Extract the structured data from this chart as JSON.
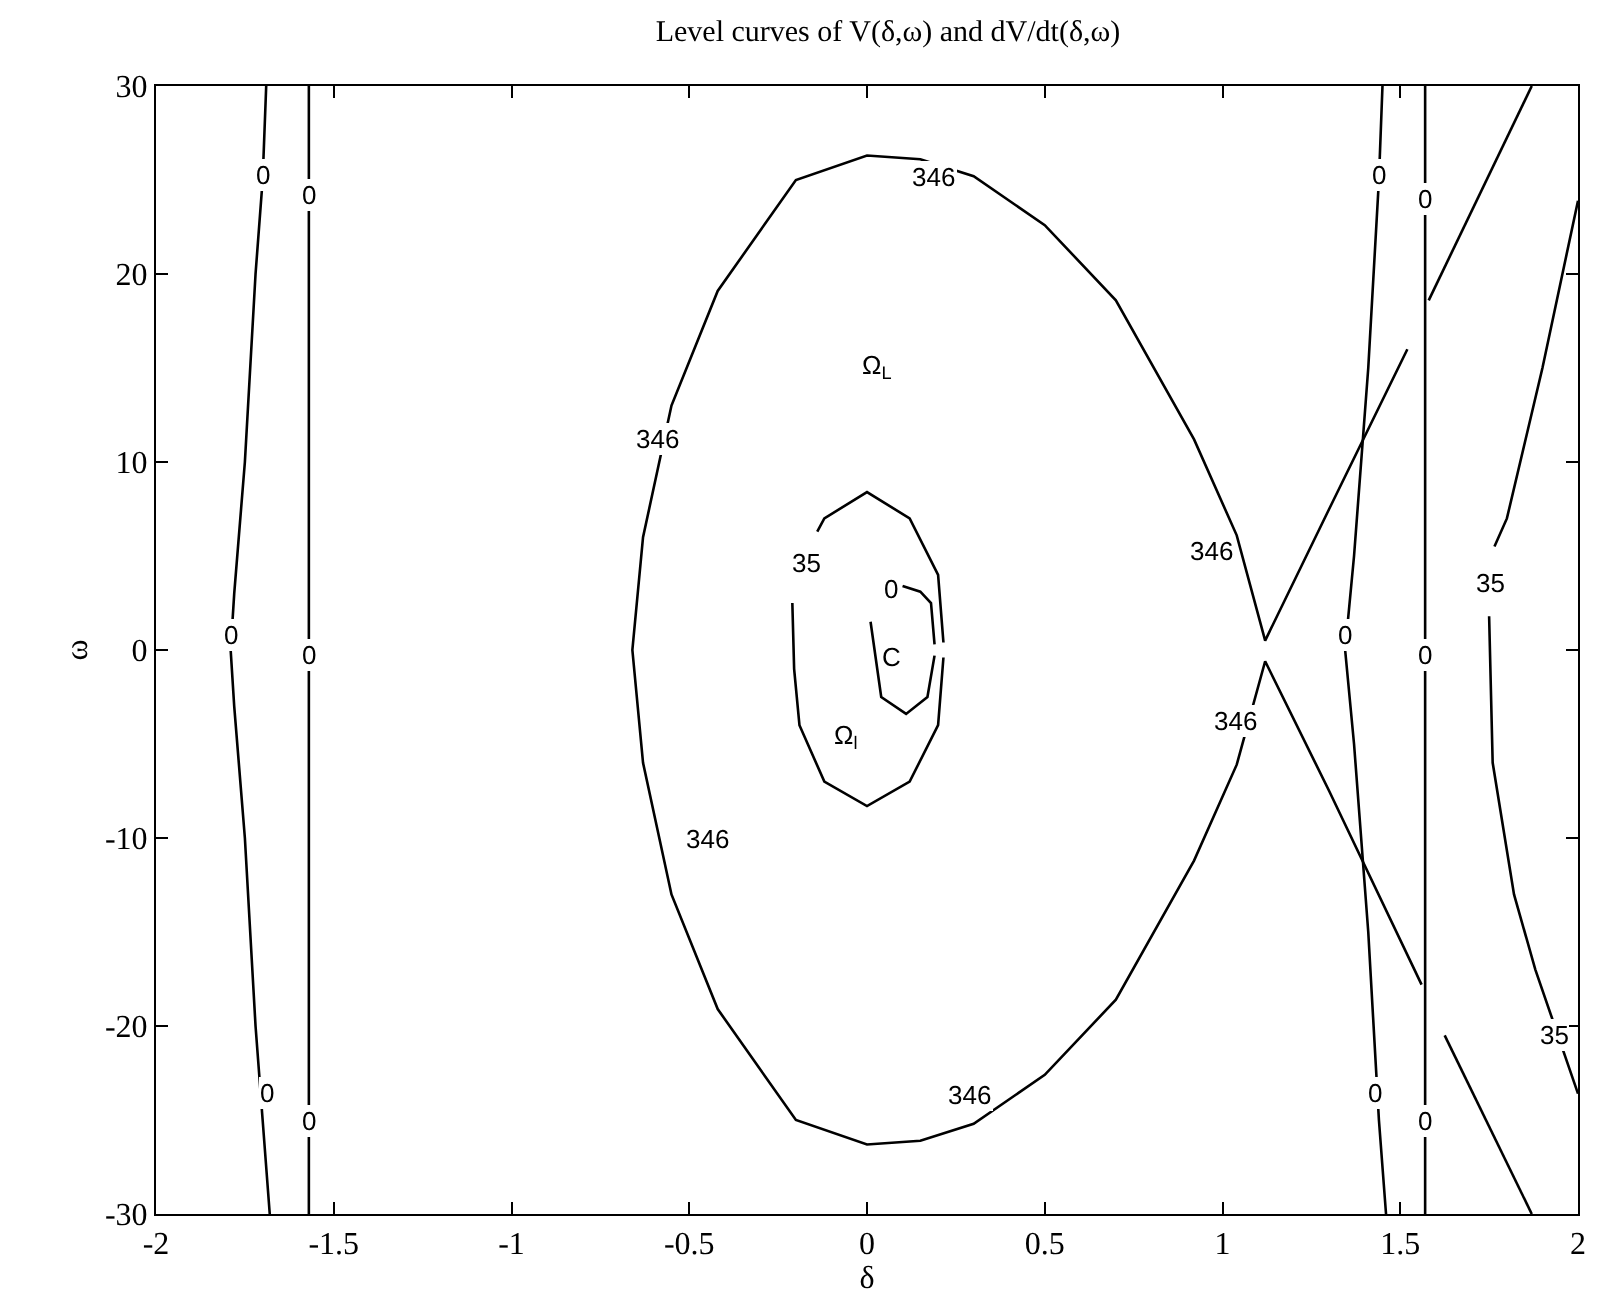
{
  "chart_data": {
    "type": "line",
    "title": "Level curves of V(δ,ω) and dV/dt(δ,ω)",
    "xlabel": "δ",
    "ylabel": "ω",
    "xlim": [
      -2,
      2
    ],
    "xticks": [
      -2,
      -1.5,
      -1,
      -0.5,
      0,
      0.5,
      1,
      1.5,
      2
    ],
    "ylim": [
      -30,
      30
    ],
    "yticks": [
      -30,
      -20,
      -10,
      0,
      10,
      20,
      30
    ],
    "marker": "none",
    "line_style": "solid",
    "series": [
      {
        "color": "#000000",
        "x": [
          -1.69,
          -1.7,
          -1.72,
          -1.75,
          -1.78,
          -1.79,
          -1.78,
          -1.75,
          -1.72,
          -1.7,
          -1.68
        ],
        "values": [
          30,
          25,
          20,
          10,
          3,
          0,
          -3,
          -10,
          -20,
          -25,
          -30
        ]
      },
      {
        "color": "#000000",
        "x": [
          -1.57,
          -1.57
        ],
        "values": [
          30,
          -30
        ]
      },
      {
        "color": "#000000",
        "x": [
          1.57,
          1.57
        ],
        "values": [
          30,
          -30
        ]
      },
      {
        "color": "#000000",
        "x": [
          1.45,
          1.44,
          1.41,
          1.37,
          1.345,
          1.37,
          1.41,
          1.44,
          1.46
        ],
        "values": [
          30,
          25,
          15,
          5,
          0,
          -5,
          -15,
          -25,
          -30
        ]
      },
      {
        "color": "#000000",
        "x": [
          1.87,
          1.58
        ],
        "values": [
          30,
          18.6
        ]
      },
      {
        "color": "#000000",
        "x": [
          1.625,
          1.87
        ],
        "values": [
          -20.5,
          -30
        ]
      },
      {
        "color": "#000000",
        "x": [
          1.52,
          1.3,
          1.12,
          1.04,
          0.92,
          0.7,
          0.5,
          0.3,
          0.15,
          0,
          -0.2,
          -0.42,
          -0.55,
          -0.63,
          -0.66,
          -0.63,
          -0.55,
          -0.42,
          -0.2,
          0,
          0.15,
          0.3,
          0.5,
          0.7,
          0.92,
          1.04,
          1.12,
          1.3,
          1.56
        ],
        "values": [
          16,
          7.5,
          0.5,
          6.1,
          11.2,
          18.6,
          22.6,
          25.2,
          26.1,
          26.3,
          25,
          19.1,
          13,
          6,
          0,
          -6,
          -13,
          -19.1,
          -25,
          -26.3,
          -26.1,
          -25.2,
          -22.6,
          -18.6,
          -11.2,
          -6.1,
          -0.6,
          -7.5,
          -17.8
        ]
      },
      {
        "color": "#000000",
        "x": [
          -0.14,
          -0.12,
          0,
          0.12,
          0.2,
          0.215
        ],
        "values": [
          6.3,
          7,
          8.4,
          7,
          4,
          0.4
        ]
      },
      {
        "color": "#000000",
        "x": [
          -0.21,
          -0.205,
          -0.19,
          -0.12,
          0,
          0.12,
          0.2,
          0.215
        ],
        "values": [
          2.5,
          -1,
          -4,
          -7,
          -8.3,
          -7,
          -4,
          -0.4
        ]
      },
      {
        "color": "#000000",
        "x": [
          0.1,
          0.15,
          0.18,
          0.19
        ],
        "values": [
          3.4,
          3.1,
          2.5,
          0.3
        ]
      },
      {
        "color": "#000000",
        "x": [
          0.01,
          0.04,
          0.11,
          0.17,
          0.19
        ],
        "values": [
          1.5,
          -2.5,
          -3.4,
          -2.5,
          -0.3
        ]
      },
      {
        "color": "#000000",
        "x": [
          1.765,
          1.8,
          1.9,
          2
        ],
        "values": [
          5.5,
          7,
          15,
          23.9
        ]
      },
      {
        "color": "#000000",
        "x": [
          1.75,
          1.76,
          1.82,
          1.88,
          2
        ],
        "values": [
          1.8,
          -6,
          -13,
          -17,
          -23.6
        ]
      }
    ],
    "annotations": [
      {
        "text": "346",
        "x": -0.59,
        "y": 11.2
      },
      {
        "text": "346",
        "x": 0.19,
        "y": 25.2
      },
      {
        "text": "346",
        "x": 0.97,
        "y": 5.3
      },
      {
        "text": "346",
        "x": 1.04,
        "y": -3.8
      },
      {
        "text": "346",
        "x": -0.45,
        "y": -10.1
      },
      {
        "text": "346",
        "x": 0.29,
        "y": -23.7
      },
      {
        "text": "35",
        "x": -0.17,
        "y": 4.6
      },
      {
        "text": "35",
        "x": 1.75,
        "y": 3.6
      },
      {
        "text": "35",
        "x": 1.93,
        "y": -20.5
      },
      {
        "text": "0",
        "x": 0.07,
        "y": 3.2
      },
      {
        "text": "0",
        "x": -1.7,
        "y": 25.3
      },
      {
        "text": "0",
        "x": -1.79,
        "y": 0.8
      },
      {
        "text": "0",
        "x": -1.69,
        "y": -23.6
      },
      {
        "text": "0",
        "x": -1.57,
        "y": 24.2
      },
      {
        "text": "0",
        "x": -1.57,
        "y": -0.3
      },
      {
        "text": "0",
        "x": -1.57,
        "y": -25
      },
      {
        "text": "0",
        "x": 1.345,
        "y": 0.8
      },
      {
        "text": "0",
        "x": 1.44,
        "y": 25.3
      },
      {
        "text": "0",
        "x": 1.43,
        "y": -23.6
      },
      {
        "text": "0",
        "x": 1.57,
        "y": 24
      },
      {
        "text": "0",
        "x": 1.57,
        "y": -0.3
      },
      {
        "text": "0",
        "x": 1.57,
        "y": -25.1
      },
      {
        "text": "Ω$_{L}$",
        "x": 0.03,
        "y": 15.1
      },
      {
        "text": "C",
        "x": 0.07,
        "y": -0.4
      },
      {
        "text": "Ω$_{l}$",
        "x": -0.06,
        "y": -4.6
      }
    ]
  }
}
